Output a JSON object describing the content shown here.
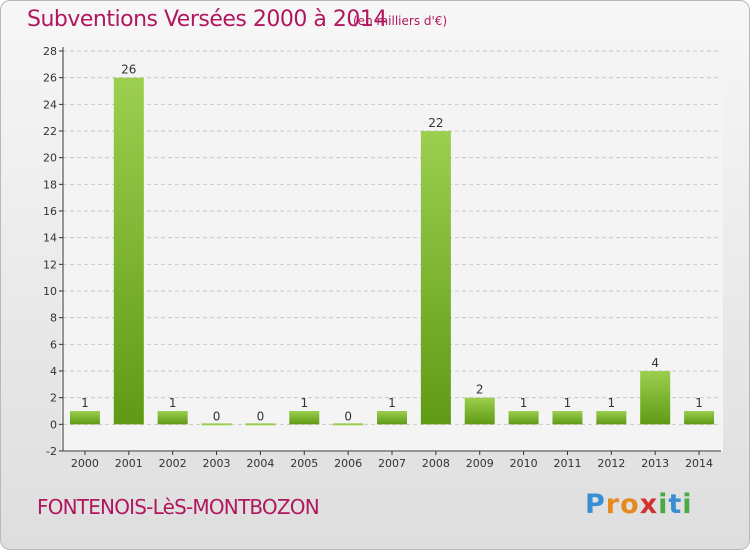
{
  "header": {
    "title": "Subventions Versées 2000 à 2014",
    "unit": "(en milliers d'€)"
  },
  "footer": {
    "town": "FONTENOIS-LèS-MONTBOZON",
    "logo_letters": [
      "P",
      "r",
      "o",
      "x",
      "i",
      "t",
      "i"
    ],
    "logo_colors": [
      "#3a8fd4",
      "#e58a20",
      "#e58a20",
      "#d2312f",
      "#4aa845",
      "#3a8fd4",
      "#4aa845"
    ]
  },
  "colors": {
    "title": "#b0175e",
    "bar_light": "#9ccf4f",
    "bar_dark": "#5f9a16",
    "grid": "#c8c8c8",
    "axis": "#333333"
  },
  "chart_data": {
    "type": "bar",
    "categories": [
      "2000",
      "2001",
      "2002",
      "2003",
      "2004",
      "2005",
      "2006",
      "2007",
      "2008",
      "2009",
      "2010",
      "2011",
      "2012",
      "2013",
      "2014"
    ],
    "values": [
      1,
      26,
      1,
      0,
      0,
      1,
      0,
      1,
      22,
      2,
      1,
      1,
      1,
      4,
      1
    ],
    "data_labels": [
      "1",
      "26",
      "1",
      "0",
      "0",
      "1",
      "0",
      "1",
      "22",
      "2",
      "1",
      "1",
      "1",
      "4",
      "1"
    ],
    "ylim": [
      -2,
      28
    ],
    "yticks": [
      -2,
      0,
      2,
      4,
      6,
      8,
      10,
      12,
      14,
      16,
      18,
      20,
      22,
      24,
      26,
      28
    ],
    "grid": true,
    "xlabel": "",
    "ylabel": ""
  }
}
